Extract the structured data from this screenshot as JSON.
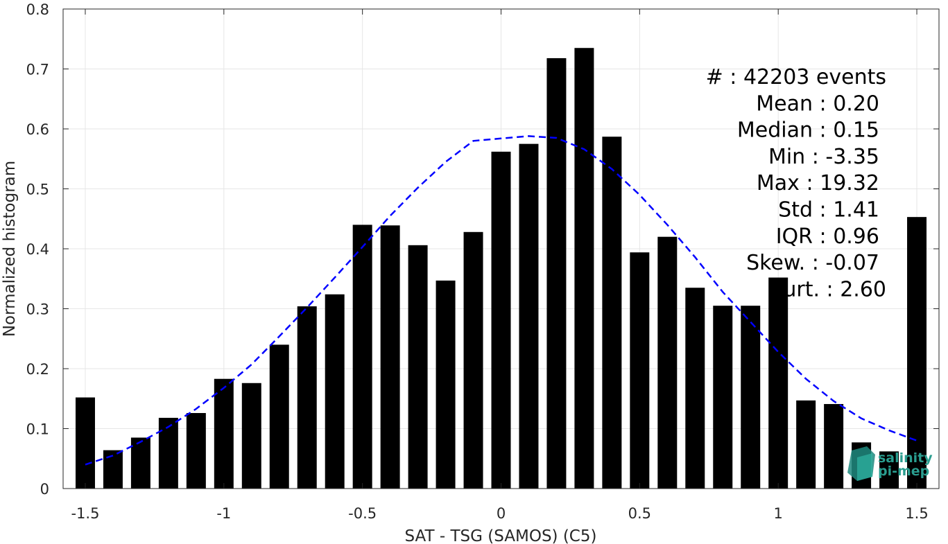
{
  "chart_data": {
    "type": "bar",
    "xlabel": "SAT - TSG (SAMOS) (C5)",
    "ylabel": "Normalized histogram",
    "xlim": [
      -1.58,
      1.58
    ],
    "ylim": [
      0,
      0.8
    ],
    "xticks": [
      -1.5,
      -1,
      -0.5,
      0,
      0.5,
      1,
      1.5
    ],
    "xtick_labels": [
      "-1.5",
      "-1",
      "-0.5",
      "0",
      "0.5",
      "1",
      "1.5"
    ],
    "yticks": [
      0,
      0.1,
      0.2,
      0.3,
      0.4,
      0.5,
      0.6,
      0.7,
      0.8
    ],
    "ytick_labels": [
      "0",
      "0.1",
      "0.2",
      "0.3",
      "0.4",
      "0.5",
      "0.6",
      "0.7",
      "0.8"
    ],
    "grid": true,
    "bin_width": 0.1,
    "bar_color": "#000000",
    "x": [
      -1.5,
      -1.4,
      -1.3,
      -1.2,
      -1.1,
      -1.0,
      -0.9,
      -0.8,
      -0.7,
      -0.6,
      -0.5,
      -0.4,
      -0.3,
      -0.2,
      -0.1,
      0.0,
      0.1,
      0.2,
      0.3,
      0.4,
      0.5,
      0.6,
      0.7,
      0.8,
      0.9,
      1.0,
      1.1,
      1.2,
      1.3,
      1.4,
      1.5
    ],
    "values": [
      0.152,
      0.064,
      0.085,
      0.118,
      0.126,
      0.183,
      0.176,
      0.24,
      0.304,
      0.324,
      0.44,
      0.439,
      0.406,
      0.347,
      0.428,
      0.562,
      0.575,
      0.718,
      0.735,
      0.587,
      0.394,
      0.42,
      0.335,
      0.305,
      0.305,
      0.352,
      0.147,
      0.141,
      0.077,
      0.062,
      0.453
    ],
    "fit_curve": {
      "style": "dashed",
      "color": "#0000ff",
      "x": [
        -1.5,
        -1.4,
        -1.3,
        -1.2,
        -1.1,
        -1.0,
        -0.9,
        -0.8,
        -0.7,
        -0.6,
        -0.5,
        -0.4,
        -0.3,
        -0.2,
        -0.1,
        0.0,
        0.1,
        0.2,
        0.3,
        0.4,
        0.5,
        0.6,
        0.7,
        0.8,
        0.9,
        1.0,
        1.1,
        1.2,
        1.3,
        1.4,
        1.5
      ],
      "y": [
        0.04,
        0.055,
        0.078,
        0.103,
        0.133,
        0.168,
        0.207,
        0.254,
        0.302,
        0.352,
        0.403,
        0.455,
        0.502,
        0.545,
        0.58,
        0.584,
        0.588,
        0.585,
        0.566,
        0.533,
        0.49,
        0.44,
        0.386,
        0.328,
        0.278,
        0.228,
        0.183,
        0.146,
        0.117,
        0.097,
        0.08
      ]
    },
    "annotations": [
      "#  : 42203 events",
      "Mean : 0.20",
      "Median : 0.15",
      "Min : -3.35",
      "Max : 19.32",
      "Std : 1.41",
      "IQR : 0.96",
      "Skew. : -0.07",
      "urt. : 2.60"
    ]
  },
  "logo": {
    "line1": "salinity",
    "line2": "pi-mep",
    "color": "#2a9d8f"
  }
}
